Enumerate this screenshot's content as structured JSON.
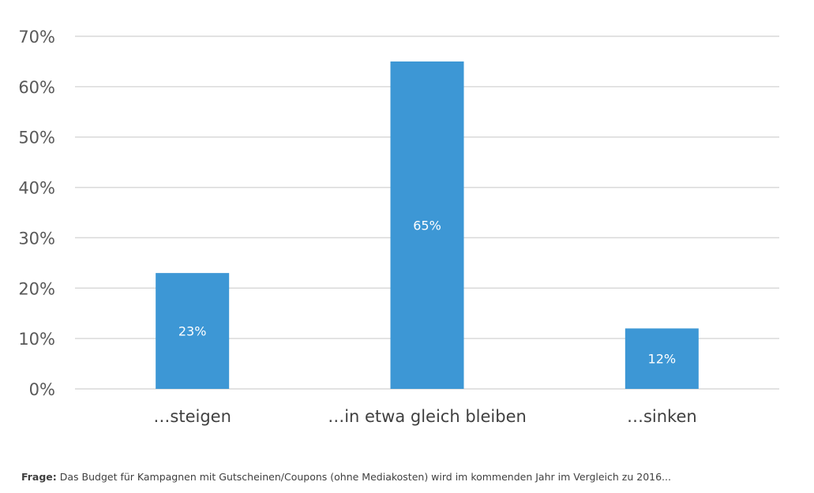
{
  "chart_data": {
    "type": "bar",
    "categories": [
      "…steigen",
      "…in etwa gleich bleiben",
      "…sinken"
    ],
    "values": [
      23,
      65,
      12
    ],
    "data_labels": [
      "23%",
      "65%",
      "12%"
    ],
    "ylim": [
      0,
      70
    ],
    "yticks": [
      0,
      10,
      20,
      30,
      40,
      50,
      60,
      70
    ],
    "ytick_labels": [
      "0%",
      "10%",
      "20%",
      "30%",
      "40%",
      "50%",
      "60%",
      "70%"
    ],
    "grid": true,
    "bar_color": "#3d97d5",
    "grid_color": "#d9d9d9",
    "title": "",
    "xlabel": "",
    "ylabel": ""
  },
  "footnote": {
    "label": "Frage:",
    "text": "Das Budget für Kampagnen mit Gutscheinen/Coupons (ohne Mediakosten) wird im kommenden Jahr im Vergleich zu 2016..."
  }
}
